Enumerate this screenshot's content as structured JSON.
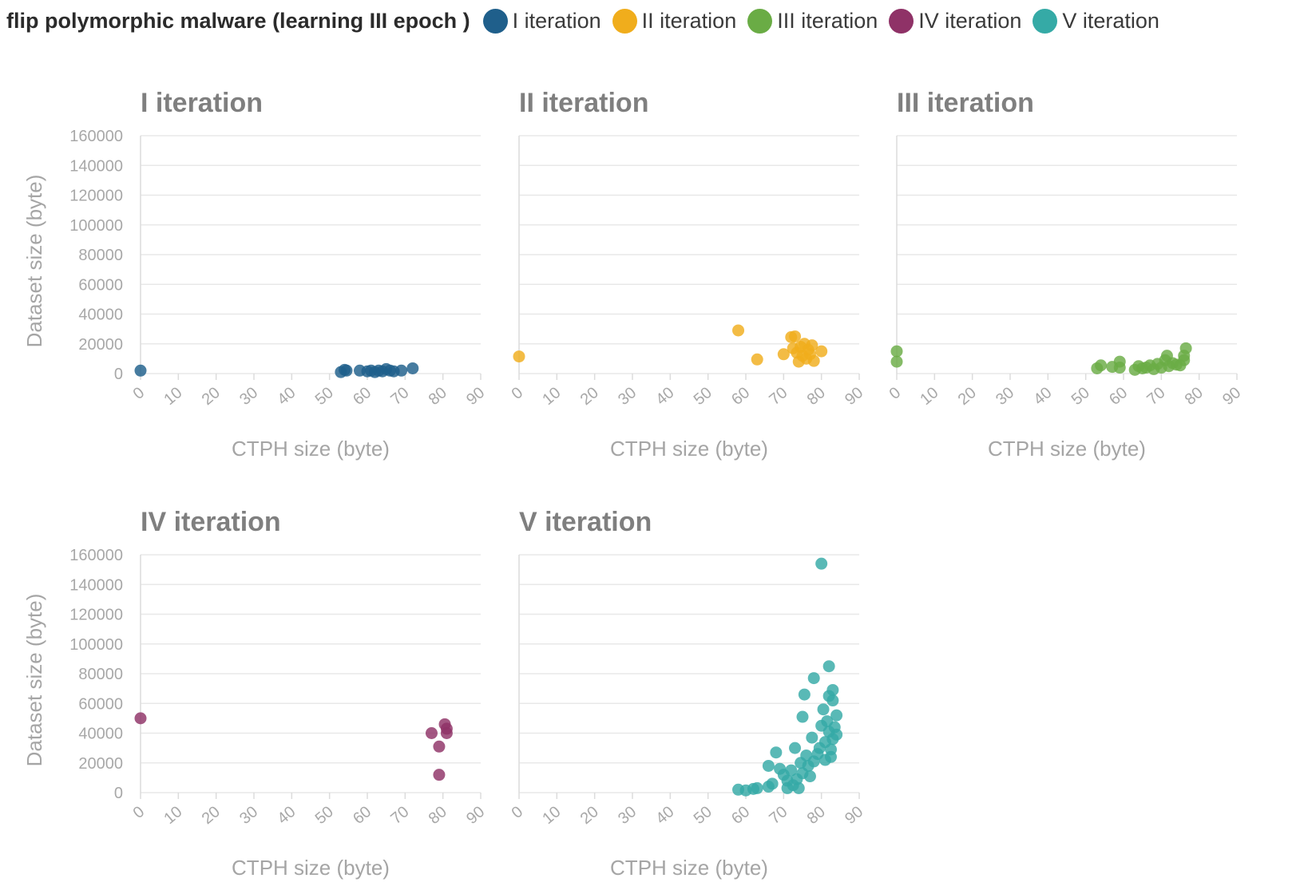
{
  "chart_data": {
    "type": "scatter",
    "title": "flip polymorphic malware (learning III epoch )",
    "legend": {
      "placement": "top",
      "items": [
        {
          "label": "I iteration",
          "color": "#1f5f8b"
        },
        {
          "label": "II iteration",
          "color": "#f0ad1c"
        },
        {
          "label": "III iteration",
          "color": "#6aac45"
        },
        {
          "label": "IV iteration",
          "color": "#8f3267"
        },
        {
          "label": "V iteration",
          "color": "#35aaa6"
        }
      ]
    },
    "xlabel": "CTPH size (byte)",
    "ylabel": "Dataset size (byte)",
    "xlim": [
      0,
      90
    ],
    "ylim": [
      0,
      160000
    ],
    "xticks": [
      "0",
      "10",
      "20",
      "30",
      "40",
      "50",
      "60",
      "70",
      "80",
      "90"
    ],
    "yticks": [
      "0",
      "20000",
      "40000",
      "60000",
      "80000",
      "100000",
      "120000",
      "140000",
      "160000"
    ],
    "grid": "horizontal",
    "panels": [
      {
        "title": "I iteration",
        "color": "#1f5f8b",
        "points": [
          {
            "x": 0,
            "y": 2000
          },
          {
            "x": 53,
            "y": 1000
          },
          {
            "x": 54,
            "y": 2500
          },
          {
            "x": 54.5,
            "y": 2000
          },
          {
            "x": 58,
            "y": 2000
          },
          {
            "x": 60,
            "y": 1500
          },
          {
            "x": 61,
            "y": 2000
          },
          {
            "x": 62,
            "y": 1000
          },
          {
            "x": 63,
            "y": 2000
          },
          {
            "x": 64,
            "y": 1500
          },
          {
            "x": 65,
            "y": 3000
          },
          {
            "x": 66,
            "y": 2000
          },
          {
            "x": 67,
            "y": 1500
          },
          {
            "x": 69,
            "y": 2000
          },
          {
            "x": 72,
            "y": 3500
          }
        ]
      },
      {
        "title": "II iteration",
        "color": "#f0ad1c",
        "points": [
          {
            "x": 0,
            "y": 11500
          },
          {
            "x": 58,
            "y": 29000
          },
          {
            "x": 63,
            "y": 9500
          },
          {
            "x": 70,
            "y": 13000
          },
          {
            "x": 72,
            "y": 24500
          },
          {
            "x": 72.5,
            "y": 17000
          },
          {
            "x": 73,
            "y": 25000
          },
          {
            "x": 73.5,
            "y": 14000
          },
          {
            "x": 74,
            "y": 8000
          },
          {
            "x": 74.5,
            "y": 18000
          },
          {
            "x": 75,
            "y": 12000
          },
          {
            "x": 75.5,
            "y": 20000
          },
          {
            "x": 76,
            "y": 10000
          },
          {
            "x": 76.5,
            "y": 16000
          },
          {
            "x": 77,
            "y": 13000
          },
          {
            "x": 77.5,
            "y": 19000
          },
          {
            "x": 78,
            "y": 8500
          },
          {
            "x": 80,
            "y": 15000
          }
        ]
      },
      {
        "title": "III iteration",
        "color": "#6aac45",
        "points": [
          {
            "x": 0,
            "y": 15000
          },
          {
            "x": 0,
            "y": 8000
          },
          {
            "x": 53,
            "y": 3500
          },
          {
            "x": 54,
            "y": 5500
          },
          {
            "x": 57,
            "y": 4500
          },
          {
            "x": 59,
            "y": 8000
          },
          {
            "x": 59,
            "y": 4000
          },
          {
            "x": 63,
            "y": 2500
          },
          {
            "x": 64,
            "y": 5000
          },
          {
            "x": 65,
            "y": 3500
          },
          {
            "x": 66,
            "y": 4000
          },
          {
            "x": 67,
            "y": 5500
          },
          {
            "x": 68,
            "y": 3000
          },
          {
            "x": 69,
            "y": 6500
          },
          {
            "x": 70,
            "y": 4000
          },
          {
            "x": 71,
            "y": 9000
          },
          {
            "x": 71.5,
            "y": 12000
          },
          {
            "x": 72,
            "y": 5000
          },
          {
            "x": 73,
            "y": 7000
          },
          {
            "x": 74,
            "y": 6000
          },
          {
            "x": 75,
            "y": 5500
          },
          {
            "x": 76,
            "y": 12000
          },
          {
            "x": 76,
            "y": 9000
          },
          {
            "x": 76.5,
            "y": 17000
          }
        ]
      },
      {
        "title": "IV iteration",
        "color": "#8f3267",
        "points": [
          {
            "x": 0,
            "y": 50000
          },
          {
            "x": 77,
            "y": 40000
          },
          {
            "x": 79,
            "y": 31000
          },
          {
            "x": 79,
            "y": 12000
          },
          {
            "x": 80.5,
            "y": 46000
          },
          {
            "x": 81,
            "y": 43000
          },
          {
            "x": 81,
            "y": 40000
          }
        ]
      },
      {
        "title": "V iteration",
        "color": "#35aaa6",
        "points": [
          {
            "x": 58,
            "y": 2000
          },
          {
            "x": 60,
            "y": 1500
          },
          {
            "x": 62,
            "y": 2500
          },
          {
            "x": 63,
            "y": 3000
          },
          {
            "x": 66,
            "y": 18000
          },
          {
            "x": 66,
            "y": 4000
          },
          {
            "x": 67,
            "y": 6000
          },
          {
            "x": 68,
            "y": 27000
          },
          {
            "x": 69,
            "y": 16000
          },
          {
            "x": 70,
            "y": 12000
          },
          {
            "x": 71,
            "y": 8000
          },
          {
            "x": 71,
            "y": 3000
          },
          {
            "x": 72,
            "y": 15000
          },
          {
            "x": 72.5,
            "y": 5000
          },
          {
            "x": 73,
            "y": 30000
          },
          {
            "x": 73.5,
            "y": 9000
          },
          {
            "x": 74,
            "y": 3000
          },
          {
            "x": 74.5,
            "y": 20000
          },
          {
            "x": 75,
            "y": 13000
          },
          {
            "x": 75,
            "y": 51000
          },
          {
            "x": 75.5,
            "y": 66000
          },
          {
            "x": 76,
            "y": 25000
          },
          {
            "x": 76.5,
            "y": 18000
          },
          {
            "x": 77,
            "y": 11000
          },
          {
            "x": 77.5,
            "y": 37000
          },
          {
            "x": 78,
            "y": 77000
          },
          {
            "x": 78,
            "y": 21000
          },
          {
            "x": 79,
            "y": 26000
          },
          {
            "x": 79.5,
            "y": 30000
          },
          {
            "x": 80,
            "y": 154000
          },
          {
            "x": 80,
            "y": 45000
          },
          {
            "x": 80.5,
            "y": 56000
          },
          {
            "x": 81,
            "y": 34000
          },
          {
            "x": 81,
            "y": 22000
          },
          {
            "x": 81.5,
            "y": 48000
          },
          {
            "x": 82,
            "y": 65000
          },
          {
            "x": 82,
            "y": 85000
          },
          {
            "x": 82,
            "y": 41000
          },
          {
            "x": 82.5,
            "y": 29000
          },
          {
            "x": 83,
            "y": 69000
          },
          {
            "x": 83,
            "y": 62000
          },
          {
            "x": 83,
            "y": 36000
          },
          {
            "x": 83.5,
            "y": 44000
          },
          {
            "x": 84,
            "y": 52000
          },
          {
            "x": 84,
            "y": 39000
          },
          {
            "x": 82.5,
            "y": 24000
          }
        ]
      }
    ]
  }
}
